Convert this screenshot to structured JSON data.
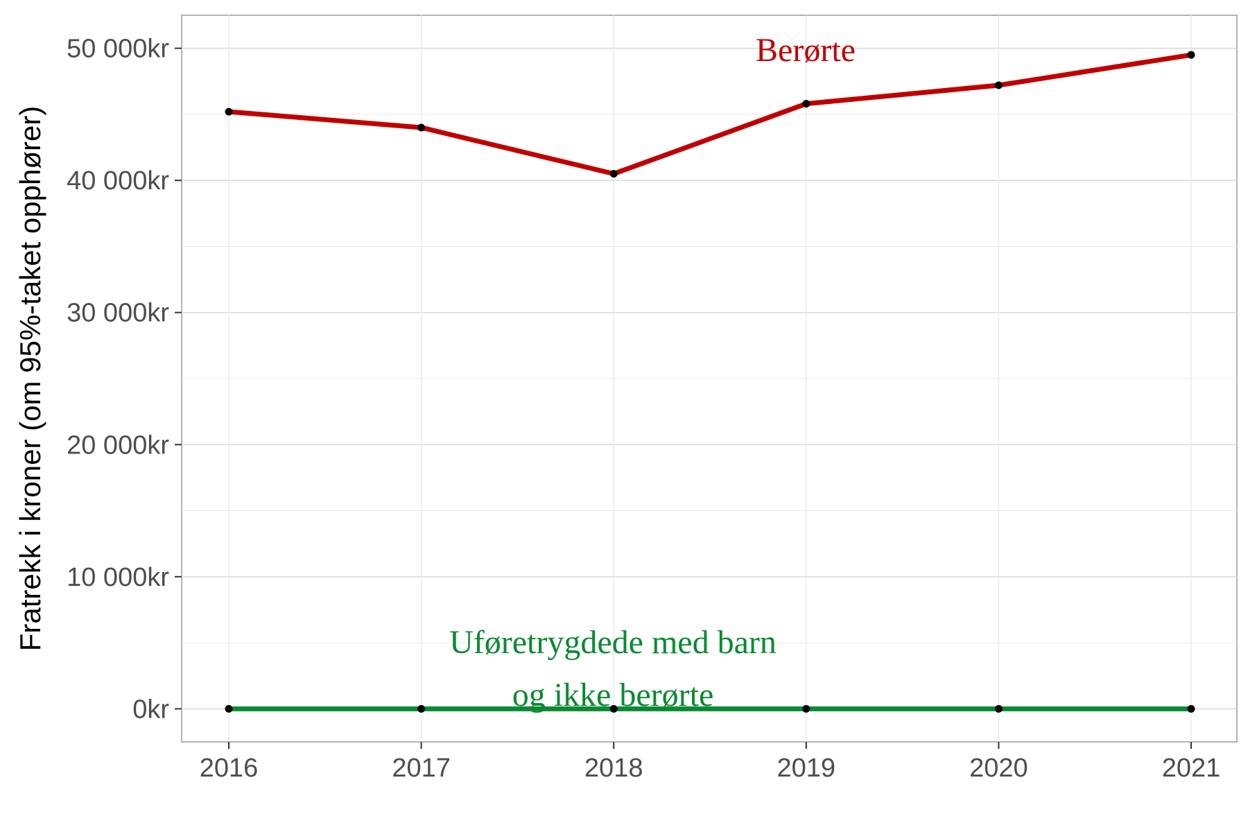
{
  "chart_data": {
    "type": "line",
    "ylabel": "Fratrekk i kroner (om 95%-taket opphører)",
    "x": [
      "2016",
      "2017",
      "2018",
      "2019",
      "2020",
      "2021"
    ],
    "y_ticks": [
      "0kr",
      "10 000kr",
      "20 000kr",
      "30 000kr",
      "40 000kr",
      "50 000kr"
    ],
    "ylim": [
      -2500,
      52500
    ],
    "grid": true,
    "series": [
      {
        "name": "Berørte",
        "color": "#c00000",
        "values": [
          45200,
          44000,
          40500,
          45800,
          47200,
          49500
        ]
      },
      {
        "name": "Uføretrygdede med barn og ikke berørte",
        "color": "#0a8a32",
        "values": [
          0,
          0,
          0,
          0,
          0,
          0
        ]
      }
    ],
    "annotations": [
      {
        "text": "Berørte",
        "color": "#c00000"
      },
      {
        "text": "Uføretrygdede med barn",
        "color": "#0a8a32"
      },
      {
        "text": "og ikke berørte",
        "color": "#0a8a32"
      }
    ]
  }
}
